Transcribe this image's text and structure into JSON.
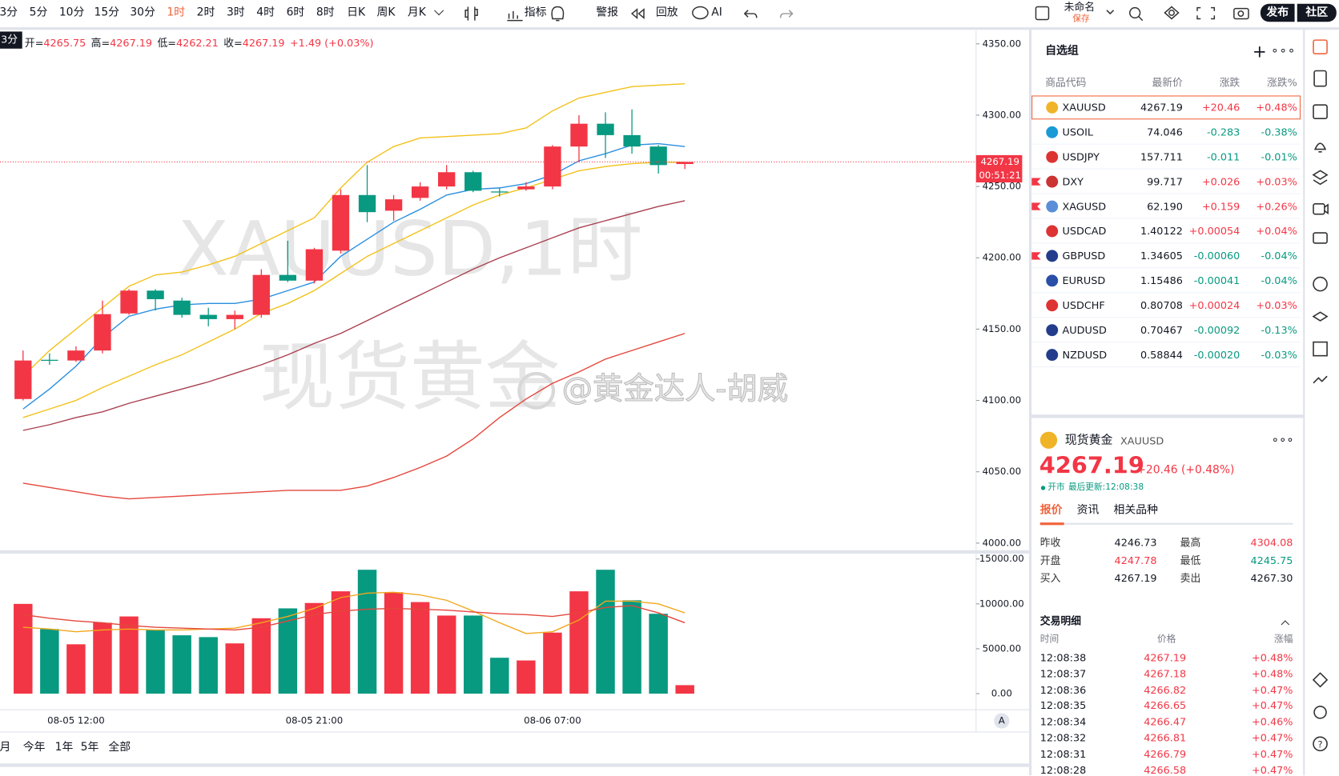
{
  "toolbar": {
    "intervals": [
      {
        "label": "3分"
      },
      {
        "label": "5分"
      },
      {
        "label": "10分"
      },
      {
        "label": "15分"
      },
      {
        "label": "30分"
      },
      {
        "label": "1时",
        "active": true
      },
      {
        "label": "2时"
      },
      {
        "label": "3时"
      },
      {
        "label": "4时"
      },
      {
        "label": "6时"
      },
      {
        "label": "8时"
      },
      {
        "label": "日K"
      },
      {
        "label": "周K"
      },
      {
        "label": "月K"
      }
    ],
    "tools": [
      "指标",
      "警报",
      "回放",
      "AI"
    ],
    "layout_name": "未命名",
    "save": "保存",
    "publish": "发布",
    "community": "社区"
  },
  "chart": {
    "type": "candlestick",
    "interval_badge": "3分",
    "legend": [
      {
        "label": "开=",
        "value": "4265.75"
      },
      {
        "label": "高=",
        "value": "4267.19"
      },
      {
        "label": "低=",
        "value": "4262.21"
      },
      {
        "label": "收=",
        "value": "4267.19"
      }
    ],
    "legend_change": "+1.49 (+0.03%)",
    "watermark": [
      "XAUUSD,1时",
      "现货黄金"
    ],
    "credit": "@黄金达人-胡威",
    "categories": [
      null,
      null,
      "08-05 12:00",
      null,
      null,
      null,
      null,
      null,
      null,
      null,
      null,
      "08-05 21:00",
      null,
      null,
      null,
      null,
      null,
      null,
      null,
      null,
      "08-06 07:00",
      null,
      null,
      null,
      null,
      null
    ],
    "candles": [
      {
        "open": 4101,
        "high": 4135,
        "low": 4100,
        "close": 4128
      },
      {
        "open": 4128.5,
        "high": 4133,
        "low": 4125,
        "close": 4128
      },
      {
        "open": 4128,
        "high": 4138,
        "low": 4127,
        "close": 4135
      },
      {
        "open": 4135,
        "high": 4170,
        "low": 4133,
        "close": 4160.5
      },
      {
        "open": 4161,
        "high": 4178,
        "low": 4160,
        "close": 4177
      },
      {
        "open": 4177,
        "high": 4178,
        "low": 4163,
        "close": 4171
      },
      {
        "open": 4170,
        "high": 4172,
        "low": 4158,
        "close": 4160
      },
      {
        "open": 4160,
        "high": 4165,
        "low": 4152,
        "close": 4157
      },
      {
        "open": 4157,
        "high": 4163,
        "low": 4150,
        "close": 4160
      },
      {
        "open": 4160,
        "high": 4192,
        "low": 4158,
        "close": 4188
      },
      {
        "open": 4188,
        "high": 4212,
        "low": 4183,
        "close": 4184
      },
      {
        "open": 4184,
        "high": 4207,
        "low": 4182,
        "close": 4206
      },
      {
        "open": 4205,
        "high": 4248,
        "low": 4203,
        "close": 4244
      },
      {
        "open": 4244,
        "high": 4265,
        "low": 4225,
        "close": 4232
      },
      {
        "open": 4233,
        "high": 4244,
        "low": 4226,
        "close": 4241
      },
      {
        "open": 4242,
        "high": 4253,
        "low": 4240,
        "close": 4250
      },
      {
        "open": 4250,
        "high": 4265,
        "low": 4248,
        "close": 4260
      },
      {
        "open": 4260,
        "high": 4261,
        "low": 4246,
        "close": 4247
      },
      {
        "open": 4246.5,
        "high": 4249,
        "low": 4243,
        "close": 4246
      },
      {
        "open": 4248,
        "high": 4253,
        "low": 4247,
        "close": 4250
      },
      {
        "open": 4250,
        "high": 4279,
        "low": 4248,
        "close": 4278
      },
      {
        "open": 4278,
        "high": 4300,
        "low": 4267,
        "close": 4294
      },
      {
        "open": 4294,
        "high": 4302,
        "low": 4270,
        "close": 4286
      },
      {
        "open": 4286,
        "high": 4304,
        "low": 4273,
        "close": 4278
      },
      {
        "open": 4278,
        "high": 4279,
        "low": 4259,
        "close": 4265
      },
      {
        "open": 4265.75,
        "high": 4267.19,
        "low": 4262.21,
        "close": 4267.19
      }
    ],
    "ylim": [
      3995,
      4358
    ],
    "yticks": [
      {
        "value": 4000,
        "label": "4000.00"
      },
      {
        "value": 4050,
        "label": "4050.00"
      },
      {
        "value": 4100,
        "label": "4100.00"
      },
      {
        "value": 4150,
        "label": "4150.00"
      },
      {
        "value": 4200,
        "label": "4200.00"
      },
      {
        "value": 4250,
        "label": "4250.00"
      },
      {
        "value": 4300,
        "label": "4300.00"
      },
      {
        "value": 4350,
        "label": "4350.00"
      }
    ],
    "up_color": "#f23645",
    "down_color": "#089981",
    "ma_lines": [
      {
        "color": "#2a8fe0",
        "values": [
          4094,
          4108,
          4124,
          4144,
          4159,
          4164,
          4167,
          4168,
          4168,
          4171,
          4177,
          4183,
          4201,
          4213,
          4225,
          4234,
          4244,
          4248,
          4249,
          4252,
          4258,
          4268,
          4273,
          4279,
          4280,
          4278
        ]
      },
      {
        "color": "#f2c21b",
        "values": [
          4117,
          4135,
          4150,
          4165,
          4180,
          4188,
          4190,
          4195,
          4201,
          4210,
          4219,
          4228,
          4249,
          4267,
          4278,
          4284,
          4285,
          4286,
          4287,
          4291,
          4303,
          4312,
          4316,
          4320,
          4321,
          4322
        ]
      },
      {
        "color": "#f2c21b",
        "values": [
          4088,
          4094,
          4100,
          4109,
          4117,
          4125,
          4132,
          4141,
          4150,
          4161,
          4168,
          4177,
          4189,
          4201,
          4210,
          4219,
          4228,
          4237,
          4244,
          4249,
          4255,
          4261,
          4264,
          4266,
          4267,
          4267
        ]
      },
      {
        "color": "#a8404f",
        "values": [
          4079,
          4083,
          4088,
          4092,
          4098,
          4103,
          4108,
          4113,
          4119,
          4125,
          4132,
          4140,
          4147,
          4156,
          4165,
          4174,
          4183,
          4192,
          4200,
          4207,
          4214,
          4221,
          4226,
          4231,
          4236,
          4240
        ]
      },
      {
        "color": "#e4473c",
        "values": [
          4042,
          4039,
          4036,
          4033,
          4031,
          4032,
          4033,
          4034,
          4035,
          4036,
          4037,
          4037,
          4037,
          4040,
          4046,
          4053,
          4061,
          4073,
          4088,
          4101,
          4112,
          4120,
          4129,
          4135,
          4141,
          4147
        ]
      }
    ],
    "last_price": {
      "value": 4267.19,
      "label": "4267.19",
      "countdown": "00:51:21"
    },
    "volume": {
      "values": [
        10000,
        7200,
        5500,
        7900,
        8600,
        7100,
        6500,
        6300,
        5600,
        8400,
        9500,
        10100,
        11400,
        13800,
        11300,
        10200,
        8700,
        8700,
        4000,
        3700,
        6800,
        11400,
        13800,
        10400,
        8900,
        950
      ],
      "ylim": [
        -1600,
        15500
      ],
      "yticks": [
        {
          "value": 0,
          "label": "0.00"
        },
        {
          "value": 5000,
          "label": "5000.00"
        },
        {
          "value": 10000,
          "label": "10000.00"
        },
        {
          "value": 15000,
          "label": "15000.00"
        }
      ],
      "ma_lines": [
        {
          "color": "#f2a71b",
          "values": [
            7400,
            7200,
            6900,
            7100,
            7200,
            7100,
            7100,
            7200,
            7300,
            7900,
            8600,
            9500,
            10700,
            11200,
            11300,
            11000,
            10400,
            9200,
            7900,
            6700,
            6900,
            8200,
            10300,
            10300,
            10000,
            9000
          ]
        },
        {
          "color": "#e4473c",
          "values": [
            8800,
            8400,
            8100,
            7900,
            7600,
            7400,
            7300,
            7200,
            7100,
            7400,
            8100,
            8800,
            9200,
            9400,
            9500,
            9400,
            9300,
            9100,
            8900,
            8800,
            8600,
            9000,
            9600,
            9800,
            9000,
            7900
          ]
        }
      ]
    },
    "range_buttons": [
      "月",
      "今年",
      "1年",
      "5年",
      "全部"
    ],
    "auto_label": "A"
  },
  "watchlist": {
    "title": "自选组",
    "columns": [
      "商品代码",
      "最新价",
      "涨跌",
      "涨跌%"
    ],
    "rows": [
      {
        "symbol": "XAUUSD",
        "price": "4267.19",
        "change": "+20.46",
        "pct": "+0.48%",
        "icon": "#f0b429",
        "selected": true
      },
      {
        "symbol": "USOIL",
        "price": "74.046",
        "change": "-0.283",
        "pct": "-0.38%",
        "icon": "#1a9ad6"
      },
      {
        "symbol": "USDJPY",
        "price": "157.711",
        "change": "-0.011",
        "pct": "-0.01%",
        "icon": "#d33"
      },
      {
        "symbol": "DXY",
        "price": "99.717",
        "change": "+0.026",
        "pct": "+0.03%",
        "icon": "#c33",
        "flagged": true
      },
      {
        "symbol": "XAGUSD",
        "price": "62.190",
        "change": "+0.159",
        "pct": "+0.26%",
        "icon": "#5a8fd8",
        "flagged": true
      },
      {
        "symbol": "USDCAD",
        "price": "1.40122",
        "change": "+0.00054",
        "pct": "+0.04%",
        "icon": "#d33"
      },
      {
        "symbol": "GBPUSD",
        "price": "1.34605",
        "change": "-0.00060",
        "pct": "-0.04%",
        "icon": "#233d8c",
        "flagged": true
      },
      {
        "symbol": "EURUSD",
        "price": "1.15486",
        "change": "-0.00041",
        "pct": "-0.04%",
        "icon": "#2a4fa8"
      },
      {
        "symbol": "USDCHF",
        "price": "0.80708",
        "change": "+0.00024",
        "pct": "+0.03%",
        "icon": "#d33"
      },
      {
        "symbol": "AUDUSD",
        "price": "0.70467",
        "change": "-0.00092",
        "pct": "-0.13%",
        "icon": "#233d8c"
      },
      {
        "symbol": "NZDUSD",
        "price": "0.58844",
        "change": "-0.00020",
        "pct": "-0.03%",
        "icon": "#233d8c"
      }
    ]
  },
  "detail": {
    "name": "现货黄金",
    "code": "XAUUSD",
    "price": "4267.19",
    "change": "+20.46 (+0.48%)",
    "status": "开市",
    "updated": "最后更新:12:08:38",
    "tabs": [
      "报价",
      "资讯",
      "相关品种"
    ],
    "quote": [
      [
        {
          "label": "昨收",
          "value": "4246.73"
        },
        {
          "label": "最高",
          "value": "4304.08",
          "color": "#f23645"
        }
      ],
      [
        {
          "label": "开盘",
          "value": "4247.78",
          "color": "#f23645"
        },
        {
          "label": "最低",
          "value": "4245.75",
          "color": "#089981"
        }
      ],
      [
        {
          "label": "买入",
          "value": "4267.19"
        },
        {
          "label": "卖出",
          "value": "4267.30"
        }
      ]
    ],
    "trades_title": "交易明细",
    "trade_columns": [
      "时间",
      "价格",
      "涨幅"
    ],
    "trades": [
      [
        "12:08:38",
        "4267.19",
        "+0.48%"
      ],
      [
        "12:08:37",
        "4267.18",
        "+0.48%"
      ],
      [
        "12:08:36",
        "4266.82",
        "+0.47%"
      ],
      [
        "12:08:35",
        "4266.65",
        "+0.47%"
      ],
      [
        "12:08:34",
        "4266.47",
        "+0.46%"
      ],
      [
        "12:08:32",
        "4266.81",
        "+0.47%"
      ],
      [
        "12:08:31",
        "4266.79",
        "+0.47%"
      ],
      [
        "12:08:28",
        "4266.58",
        "+0.47%"
      ]
    ]
  }
}
